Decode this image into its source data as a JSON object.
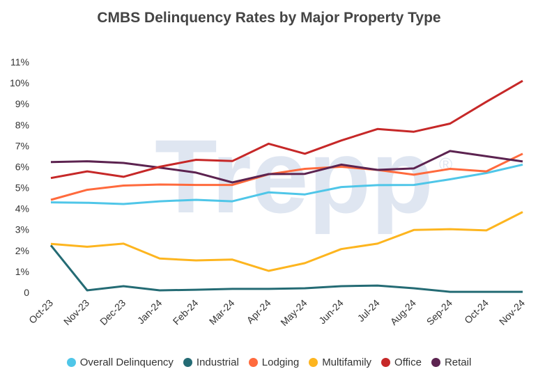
{
  "chart_data": {
    "type": "line",
    "title": "CMBS Delinquency Rates by Major Property Type",
    "xlabel": "",
    "ylabel": "",
    "ylim": [
      0,
      11
    ],
    "yticks": [
      "0",
      "1%",
      "2%",
      "3%",
      "4%",
      "5%",
      "6%",
      "7%",
      "8%",
      "9%",
      "10%",
      "11%"
    ],
    "categories": [
      "Oct-23",
      "Nov-23",
      "Dec-23",
      "Jan-24",
      "Feb-24",
      "Mar-24",
      "Apr-24",
      "May-24",
      "Jun-24",
      "Jul-24",
      "Aug-24",
      "Sep-24",
      "Oct-24",
      "Nov-24"
    ],
    "legend_position": "bottom",
    "grid": false,
    "watermark": "Trepp®",
    "series": [
      {
        "name": "Overall Delinquency",
        "color": "#4fc6e8",
        "values": [
          4.3,
          4.28,
          4.22,
          4.35,
          4.42,
          4.35,
          4.78,
          4.68,
          5.03,
          5.12,
          5.13,
          5.4,
          5.7,
          6.1
        ]
      },
      {
        "name": "Industrial",
        "color": "#246b74",
        "values": [
          2.25,
          0.1,
          0.3,
          0.1,
          0.13,
          0.17,
          0.17,
          0.2,
          0.3,
          0.33,
          0.2,
          0.03,
          0.03,
          0.03
        ]
      },
      {
        "name": "Lodging",
        "color": "#ff6a3d",
        "values": [
          4.42,
          4.9,
          5.1,
          5.15,
          5.13,
          5.13,
          5.64,
          5.9,
          6.0,
          5.85,
          5.62,
          5.9,
          5.78,
          6.62
        ]
      },
      {
        "name": "Multifamily",
        "color": "#fdb51f",
        "values": [
          2.32,
          2.18,
          2.33,
          1.62,
          1.53,
          1.57,
          1.03,
          1.4,
          2.07,
          2.33,
          2.98,
          3.02,
          2.96,
          3.84
        ]
      },
      {
        "name": "Office",
        "color": "#c62828",
        "values": [
          5.46,
          5.78,
          5.52,
          6.0,
          6.33,
          6.27,
          7.1,
          6.62,
          7.25,
          7.8,
          7.67,
          8.06,
          9.1,
          10.1
        ]
      },
      {
        "name": "Retail",
        "color": "#5c2350",
        "values": [
          6.22,
          6.26,
          6.18,
          5.96,
          5.72,
          5.25,
          5.65,
          5.66,
          6.1,
          5.85,
          5.92,
          6.75,
          6.5,
          6.25
        ]
      }
    ]
  }
}
